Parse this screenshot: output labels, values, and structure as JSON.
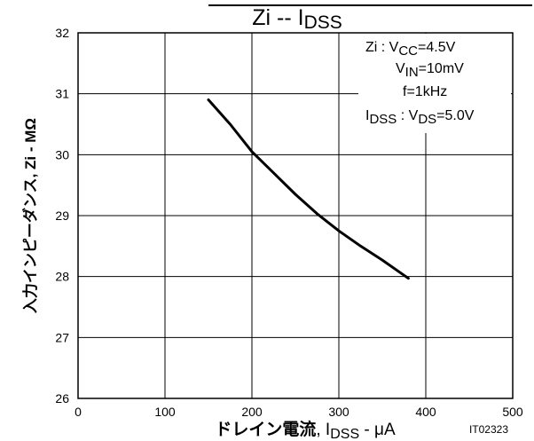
{
  "chart_data": {
    "type": "line",
    "title": {
      "main": "Zi  --  I",
      "sub": "DSS"
    },
    "xlabel": {
      "jp": "ドレイン電流",
      "sep": ", I",
      "sub": "DSS",
      "unit": " - μA"
    },
    "ylabel": "入力インピーダンス, Zi - MΩ",
    "xlim": [
      0,
      500
    ],
    "ylim": [
      26,
      32
    ],
    "x_ticks": [
      "0",
      "100",
      "200",
      "300",
      "400",
      "500"
    ],
    "y_ticks": [
      "26",
      "27",
      "28",
      "29",
      "30",
      "31",
      "32"
    ],
    "grid": true,
    "series": [
      {
        "x": [
          150,
          175,
          200,
          225,
          250,
          275,
          300,
          325,
          350,
          380
        ],
        "y": [
          30.9,
          30.5,
          30.05,
          29.7,
          29.35,
          29.03,
          28.75,
          28.5,
          28.27,
          27.97
        ]
      }
    ],
    "conditions": [
      {
        "main": "Zi : V",
        "sub": "CC",
        "rest": "=4.5V"
      },
      {
        "main": "V",
        "sub": "IN",
        "rest": "=10mV"
      },
      {
        "main": "f=1kHz",
        "sub": "",
        "rest": ""
      },
      {
        "main": "I",
        "sub": "DSS",
        "rest": " : V"
      },
      {
        "main": "",
        "sub": "DS",
        "rest": "=5.0V"
      }
    ],
    "figure_code": "IT02323",
    "colors": {
      "line": "#000000",
      "grid": "#000000",
      "background": "#ffffff"
    }
  }
}
